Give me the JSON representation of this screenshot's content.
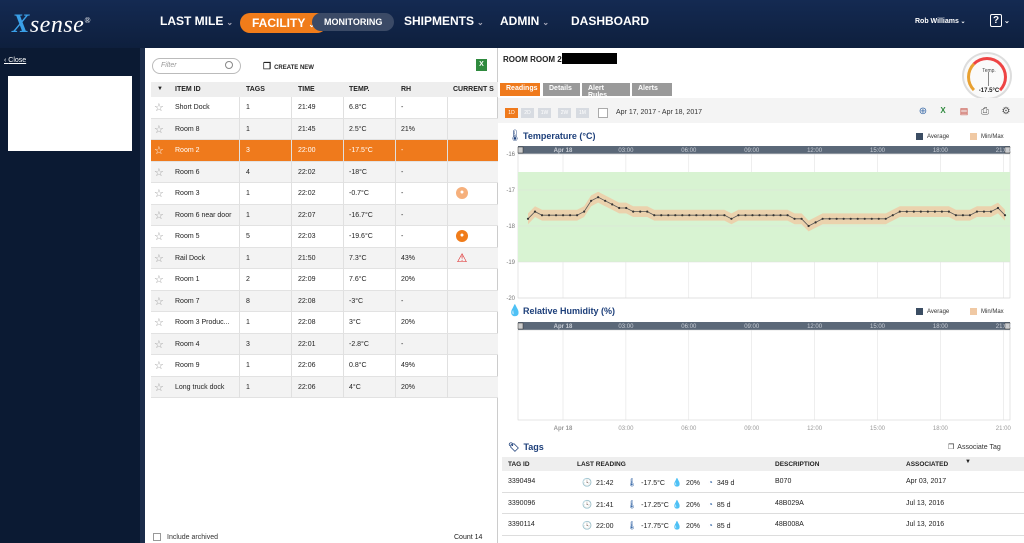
{
  "brand": {
    "logo_x": "X",
    "logo_text": "sense",
    "reg": "®"
  },
  "nav": {
    "last_mile": "LAST MILE",
    "facility": "FACILITY",
    "monitoring": "MONITORING",
    "shipments": "SHIPMENTS",
    "admin": "ADMIN",
    "dashboard": "DASHBOARD"
  },
  "user": {
    "name": "Rob Williams",
    "help": "?"
  },
  "left": {
    "close": "Close"
  },
  "list": {
    "filter_placeholder": "Filter",
    "create_new": "CREATE NEW",
    "headers": {
      "item_id": "ITEM ID",
      "tags": "TAGS",
      "time": "TIME",
      "temp": "TEMP.",
      "rh": "RH",
      "current": "CURRENT S"
    },
    "rows": [
      {
        "id": "Short Dock",
        "tags": "1",
        "time": "21:49",
        "temp": "6.8°C",
        "rh": "-",
        "status": ""
      },
      {
        "id": "Room 8",
        "tags": "1",
        "time": "21:45",
        "temp": "2.5°C",
        "rh": "21%",
        "status": ""
      },
      {
        "id": "Room 2",
        "tags": "3",
        "time": "22:00",
        "temp": "-17.5°C",
        "rh": "-",
        "status": ""
      },
      {
        "id": "Room 6",
        "tags": "4",
        "time": "22:02",
        "temp": "-18°C",
        "rh": "-",
        "status": ""
      },
      {
        "id": "Room 3",
        "tags": "1",
        "time": "22:02",
        "temp": "-0.7°C",
        "rh": "-",
        "status": "orange-light"
      },
      {
        "id": "Room 6 near door",
        "tags": "1",
        "time": "22:07",
        "temp": "-16.7°C",
        "rh": "-",
        "status": ""
      },
      {
        "id": "Room 5",
        "tags": "5",
        "time": "22:03",
        "temp": "-19.6°C",
        "rh": "-",
        "status": "orange"
      },
      {
        "id": "Rail Dock",
        "tags": "1",
        "time": "21:50",
        "temp": "7.3°C",
        "rh": "43%",
        "status": "warning"
      },
      {
        "id": "Room 1",
        "tags": "2",
        "time": "22:09",
        "temp": "7.6°C",
        "rh": "20%",
        "status": ""
      },
      {
        "id": "Room 7",
        "tags": "8",
        "time": "22:08",
        "temp": "-3°C",
        "rh": "-",
        "status": ""
      },
      {
        "id": "Room 3 Produc...",
        "tags": "1",
        "time": "22:08",
        "temp": "3°C",
        "rh": "20%",
        "status": ""
      },
      {
        "id": "Room 4",
        "tags": "3",
        "time": "22:01",
        "temp": "-2.8°C",
        "rh": "-",
        "status": ""
      },
      {
        "id": "Room 9",
        "tags": "1",
        "time": "22:06",
        "temp": "0.8°C",
        "rh": "49%",
        "status": ""
      },
      {
        "id": "Long truck dock",
        "tags": "1",
        "time": "22:06",
        "temp": "4°C",
        "rh": "20%",
        "status": ""
      }
    ],
    "include_archived": "Include archived",
    "count": "Count 14"
  },
  "detail": {
    "title": "ROOM ROOM 2",
    "gauge": {
      "label": "Temp.",
      "value": "-17.5°C"
    },
    "tabs": [
      "Readings",
      "Details",
      "Alert Rules",
      "Alerts"
    ],
    "ranges": [
      "1D",
      "2D",
      "1W",
      "2W",
      "1M"
    ],
    "date_range": "Apr 17, 2017 - Apr 18, 2017",
    "temp_title": "Temperature (°C)",
    "rh_title": "Relative Humidity (%)",
    "legend_avg": "Average",
    "legend_minmax": "Min/Max",
    "tags_title": "Tags",
    "associate_tag": "Associate Tag",
    "tags_headers": {
      "tag_id": "TAG ID",
      "last_reading": "LAST READING",
      "description": "DESCRIPTION",
      "associated": "ASSOCIATED"
    },
    "tags": [
      {
        "id": "3390494",
        "time": "21:42",
        "temp": "-17.5°C",
        "rh": "20%",
        "age": "349 d",
        "desc": "B070",
        "assoc": "Apr 03, 2017"
      },
      {
        "id": "3390096",
        "time": "21:41",
        "temp": "-17.25°C",
        "rh": "20%",
        "age": "85 d",
        "desc": "48B029A",
        "assoc": "Jul 13, 2016"
      },
      {
        "id": "3390114",
        "time": "22:00",
        "temp": "-17.75°C",
        "rh": "20%",
        "age": "85 d",
        "desc": "48B008A",
        "assoc": "Jul 13, 2016"
      }
    ]
  },
  "colors": {
    "accent": "#ef7a1c",
    "navy": "#0e1f3d",
    "chart_band": "#d8f3d2",
    "minmax": "#f0c9a4"
  },
  "chart_data": [
    {
      "type": "line",
      "title": "Temperature (°C)",
      "xlabel": "",
      "ylabel": "",
      "x_ticks": [
        "Apr 18",
        "03:00",
        "06:00",
        "09:00",
        "12:00",
        "15:00",
        "18:00",
        "21:00"
      ],
      "y_ticks": [
        -16,
        -17,
        -18,
        -19,
        -20
      ],
      "ylim": [
        -20,
        -16
      ],
      "alert_band": [
        -19,
        -16.5
      ],
      "series": [
        {
          "name": "Average",
          "values": [
            -17.8,
            -17.6,
            -17.7,
            -17.7,
            -17.7,
            -17.7,
            -17.7,
            -17.7,
            -17.6,
            -17.3,
            -17.2,
            -17.3,
            -17.4,
            -17.5,
            -17.5,
            -17.6,
            -17.6,
            -17.6,
            -17.7,
            -17.7,
            -17.7,
            -17.7,
            -17.7,
            -17.7,
            -17.7,
            -17.7,
            -17.7,
            -17.7,
            -17.7,
            -17.8,
            -17.7,
            -17.7,
            -17.7,
            -17.7,
            -17.7,
            -17.7,
            -17.7,
            -17.7,
            -17.8,
            -17.8,
            -18.0,
            -17.9,
            -17.8,
            -17.8,
            -17.8,
            -17.8,
            -17.8,
            -17.8,
            -17.8,
            -17.8,
            -17.8,
            -17.8,
            -17.7,
            -17.6,
            -17.6,
            -17.6,
            -17.6,
            -17.6,
            -17.6,
            -17.6,
            -17.6,
            -17.7,
            -17.7,
            -17.7,
            -17.6,
            -17.6,
            -17.6,
            -17.5,
            -17.7
          ]
        }
      ],
      "legend": [
        "Average",
        "Min/Max"
      ]
    },
    {
      "type": "line",
      "title": "Relative Humidity (%)",
      "x_ticks": [
        "Apr 18",
        "03:00",
        "06:00",
        "09:00",
        "12:00",
        "15:00",
        "18:00",
        "21:00"
      ],
      "series": [],
      "legend": [
        "Average",
        "Min/Max"
      ]
    }
  ]
}
